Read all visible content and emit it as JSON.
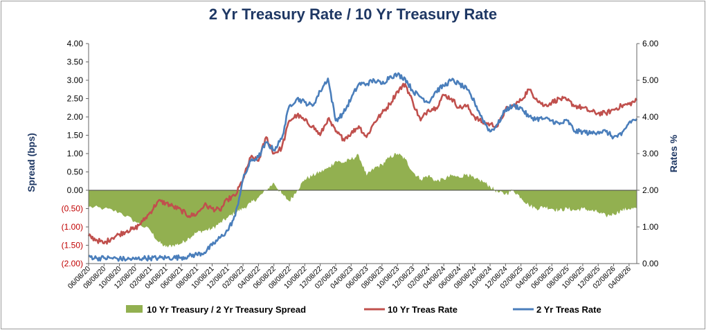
{
  "chart_data": {
    "type": "area+line",
    "title": "2 Yr Treasury Rate / 10 Yr Treasury Rate",
    "ylabel_left": "Spread (bps)",
    "ylabel_right": "Rates %",
    "left_axis": {
      "min": -2,
      "max": 4,
      "step": 0.5,
      "tick_labels": [
        "(2.00)",
        "(1.50)",
        "(1.00)",
        "(0.50)",
        "0.00",
        "0.50",
        "1.00",
        "1.50",
        "2.00",
        "2.50",
        "3.00",
        "3.50",
        "4.00"
      ]
    },
    "right_axis": {
      "min": 0,
      "max": 6,
      "step": 1,
      "tick_labels": [
        "0.00",
        "1.00",
        "2.00",
        "3.00",
        "4.00",
        "5.00",
        "6.00"
      ]
    },
    "x_tick_labels": [
      "06/08/20",
      "08/08/20",
      "10/08/20",
      "12/08/20",
      "02/08/21",
      "04/08/21",
      "06/08/21",
      "08/08/21",
      "10/08/21",
      "12/08/21",
      "02/08/22",
      "04/08/22",
      "06/08/22",
      "08/08/22",
      "10/08/22",
      "12/08/22",
      "02/08/23",
      "04/08/23",
      "06/08/23",
      "08/08/23",
      "10/08/23",
      "12/08/23",
      "02/08/24",
      "04/08/24",
      "06/08/24",
      "08/08/24",
      "10/08/24",
      "12/08/24",
      "02/08/25",
      "04/08/25",
      "06/08/25",
      "08/08/25",
      "10/08/25",
      "12/08/25",
      "02/08/26",
      "04/08/26"
    ],
    "x_start_months": 0,
    "x_end_months": 71,
    "series": [
      {
        "name": "10 Yr Treasury / 2 Yr Treasury Spread",
        "type": "area",
        "axis": "left",
        "color": "#92b050",
        "points": [
          [
            0,
            -0.45
          ],
          [
            2,
            -0.5
          ],
          [
            4,
            -0.6
          ],
          [
            6,
            -0.85
          ],
          [
            8,
            -1.1
          ],
          [
            9,
            -1.4
          ],
          [
            10,
            -1.55
          ],
          [
            11,
            -1.5
          ],
          [
            12,
            -1.45
          ],
          [
            13,
            -1.3
          ],
          [
            14,
            -1.15
          ],
          [
            15,
            -1.1
          ],
          [
            16,
            -1.05
          ],
          [
            17,
            -0.9
          ],
          [
            18,
            -0.75
          ],
          [
            19,
            -0.6
          ],
          [
            20,
            -0.5
          ],
          [
            21,
            -0.35
          ],
          [
            22,
            -0.2
          ],
          [
            23,
            0.0
          ],
          [
            24,
            0.2
          ],
          [
            25,
            -0.1
          ],
          [
            26,
            -0.3
          ],
          [
            27,
            0.0
          ],
          [
            28,
            0.3
          ],
          [
            29,
            0.4
          ],
          [
            30,
            0.5
          ],
          [
            31,
            0.6
          ],
          [
            32,
            0.8
          ],
          [
            33,
            0.75
          ],
          [
            34,
            0.85
          ],
          [
            35,
            0.95
          ],
          [
            36,
            0.4
          ],
          [
            37,
            0.6
          ],
          [
            38,
            0.7
          ],
          [
            39,
            0.9
          ],
          [
            40,
            1.0
          ],
          [
            41,
            0.85
          ],
          [
            42,
            0.5
          ],
          [
            43,
            0.3
          ],
          [
            44,
            0.4
          ],
          [
            45,
            0.25
          ],
          [
            46,
            0.3
          ],
          [
            47,
            0.4
          ],
          [
            48,
            0.35
          ],
          [
            49,
            0.45
          ],
          [
            50,
            0.3
          ],
          [
            51,
            0.25
          ],
          [
            52,
            0.1
          ],
          [
            53,
            -0.05
          ],
          [
            54,
            -0.1
          ],
          [
            55,
            0.0
          ],
          [
            56,
            -0.2
          ],
          [
            57,
            -0.4
          ],
          [
            58,
            -0.5
          ],
          [
            59,
            -0.45
          ],
          [
            60,
            -0.5
          ],
          [
            61,
            -0.55
          ],
          [
            62,
            -0.5
          ],
          [
            63,
            -0.55
          ],
          [
            64,
            -0.5
          ],
          [
            65,
            -0.55
          ],
          [
            66,
            -0.6
          ],
          [
            67,
            -0.7
          ],
          [
            68,
            -0.65
          ],
          [
            69,
            -0.55
          ],
          [
            70,
            -0.5
          ],
          [
            71,
            -0.5
          ]
        ]
      },
      {
        "name": "10 Yr Treas Rate",
        "type": "line",
        "axis": "right",
        "color": "#c0504d",
        "points": [
          [
            0,
            0.75
          ],
          [
            1,
            0.65
          ],
          [
            2,
            0.55
          ],
          [
            3,
            0.7
          ],
          [
            4,
            0.8
          ],
          [
            5,
            0.9
          ],
          [
            6,
            0.95
          ],
          [
            7,
            1.15
          ],
          [
            8,
            1.4
          ],
          [
            9,
            1.7
          ],
          [
            10,
            1.65
          ],
          [
            11,
            1.55
          ],
          [
            12,
            1.45
          ],
          [
            13,
            1.3
          ],
          [
            14,
            1.35
          ],
          [
            15,
            1.6
          ],
          [
            16,
            1.5
          ],
          [
            17,
            1.45
          ],
          [
            18,
            1.75
          ],
          [
            19,
            1.85
          ],
          [
            20,
            2.3
          ],
          [
            21,
            2.9
          ],
          [
            22,
            2.8
          ],
          [
            23,
            3.45
          ],
          [
            24,
            3.0
          ],
          [
            25,
            3.15
          ],
          [
            26,
            3.9
          ],
          [
            27,
            4.05
          ],
          [
            28,
            3.9
          ],
          [
            29,
            3.75
          ],
          [
            30,
            3.5
          ],
          [
            31,
            3.95
          ],
          [
            32,
            3.6
          ],
          [
            33,
            3.4
          ],
          [
            34,
            3.55
          ],
          [
            35,
            3.75
          ],
          [
            36,
            3.45
          ],
          [
            37,
            3.85
          ],
          [
            38,
            4.1
          ],
          [
            39,
            4.35
          ],
          [
            40,
            4.7
          ],
          [
            41,
            4.9
          ],
          [
            42,
            4.4
          ],
          [
            43,
            3.9
          ],
          [
            44,
            4.2
          ],
          [
            45,
            4.25
          ],
          [
            46,
            4.6
          ],
          [
            47,
            4.5
          ],
          [
            48,
            4.25
          ],
          [
            49,
            4.3
          ],
          [
            50,
            4.0
          ],
          [
            51,
            3.85
          ],
          [
            52,
            3.8
          ],
          [
            53,
            3.75
          ],
          [
            54,
            4.2
          ],
          [
            55,
            4.3
          ],
          [
            56,
            4.45
          ],
          [
            57,
            4.75
          ],
          [
            58,
            4.5
          ],
          [
            59,
            4.3
          ],
          [
            60,
            4.4
          ],
          [
            61,
            4.5
          ],
          [
            62,
            4.45
          ],
          [
            63,
            4.3
          ],
          [
            64,
            4.25
          ],
          [
            65,
            4.15
          ],
          [
            66,
            4.1
          ],
          [
            67,
            4.1
          ],
          [
            68,
            4.2
          ],
          [
            69,
            4.3
          ],
          [
            70,
            4.35
          ],
          [
            71,
            4.45
          ]
        ]
      },
      {
        "name": "2 Yr Treas Rate",
        "type": "line",
        "axis": "right",
        "color": "#4a7ebb",
        "points": [
          [
            0,
            0.2
          ],
          [
            1,
            0.15
          ],
          [
            2,
            0.15
          ],
          [
            3,
            0.15
          ],
          [
            4,
            0.13
          ],
          [
            5,
            0.12
          ],
          [
            6,
            0.12
          ],
          [
            7,
            0.15
          ],
          [
            8,
            0.15
          ],
          [
            9,
            0.15
          ],
          [
            10,
            0.16
          ],
          [
            11,
            0.16
          ],
          [
            12,
            0.17
          ],
          [
            13,
            0.2
          ],
          [
            14,
            0.25
          ],
          [
            15,
            0.3
          ],
          [
            16,
            0.5
          ],
          [
            17,
            0.7
          ],
          [
            18,
            0.9
          ],
          [
            19,
            1.3
          ],
          [
            20,
            2.3
          ],
          [
            21,
            2.8
          ],
          [
            22,
            2.9
          ],
          [
            23,
            3.3
          ],
          [
            24,
            3.1
          ],
          [
            25,
            3.4
          ],
          [
            26,
            4.3
          ],
          [
            27,
            4.5
          ],
          [
            28,
            4.4
          ],
          [
            29,
            4.3
          ],
          [
            30,
            4.7
          ],
          [
            31,
            5.05
          ],
          [
            32,
            3.9
          ],
          [
            33,
            4.1
          ],
          [
            34,
            4.5
          ],
          [
            35,
            4.9
          ],
          [
            36,
            4.9
          ],
          [
            37,
            5.0
          ],
          [
            38,
            4.9
          ],
          [
            39,
            5.1
          ],
          [
            40,
            5.15
          ],
          [
            41,
            5.05
          ],
          [
            42,
            4.7
          ],
          [
            43,
            4.55
          ],
          [
            44,
            4.4
          ],
          [
            45,
            4.7
          ],
          [
            46,
            4.85
          ],
          [
            47,
            5.0
          ],
          [
            48,
            4.9
          ],
          [
            49,
            4.75
          ],
          [
            50,
            4.4
          ],
          [
            51,
            3.95
          ],
          [
            52,
            3.6
          ],
          [
            53,
            3.8
          ],
          [
            54,
            4.2
          ],
          [
            55,
            4.3
          ],
          [
            56,
            4.25
          ],
          [
            57,
            4.0
          ],
          [
            58,
            3.95
          ],
          [
            59,
            3.95
          ],
          [
            60,
            3.9
          ],
          [
            61,
            3.8
          ],
          [
            62,
            3.9
          ],
          [
            63,
            3.6
          ],
          [
            64,
            3.6
          ],
          [
            65,
            3.55
          ],
          [
            66,
            3.6
          ],
          [
            67,
            3.6
          ],
          [
            68,
            3.45
          ],
          [
            69,
            3.5
          ],
          [
            70,
            3.85
          ],
          [
            71,
            3.95
          ]
        ]
      }
    ],
    "legend": {
      "placement": "bottom",
      "items": [
        "10 Yr Treasury / 2 Yr Treasury Spread",
        "10 Yr Treas Rate",
        "2 Yr Treas Rate"
      ]
    },
    "grid": false
  }
}
